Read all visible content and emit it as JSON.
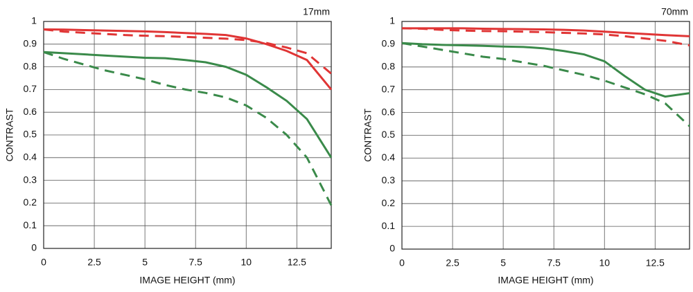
{
  "chart_data": [
    {
      "type": "line",
      "title": "17mm",
      "ylabel": "CONTRAST",
      "xlabel": "IMAGE HEIGHT (mm)",
      "x": [
        0,
        1,
        2,
        3,
        4,
        5,
        6,
        7,
        8,
        9,
        10,
        11,
        12,
        13,
        14.2
      ],
      "xlim": [
        0,
        14.2
      ],
      "xticks": [
        0,
        2.5,
        5,
        7.5,
        10,
        12.5
      ],
      "ylim": [
        0,
        1
      ],
      "yticks": [
        0,
        0.1,
        0.2,
        0.3,
        0.4,
        0.5,
        0.6,
        0.7,
        0.8,
        0.9,
        1
      ],
      "grid": true,
      "series": [
        {
          "color": "#e03535",
          "style": "solid",
          "values": [
            0.965,
            0.964,
            0.962,
            0.96,
            0.958,
            0.956,
            0.953,
            0.949,
            0.945,
            0.94,
            0.925,
            0.9,
            0.87,
            0.83,
            0.7
          ]
        },
        {
          "color": "#e03535",
          "style": "dashed",
          "values": [
            0.965,
            0.955,
            0.95,
            0.945,
            0.94,
            0.937,
            0.935,
            0.932,
            0.928,
            0.924,
            0.918,
            0.905,
            0.885,
            0.86,
            0.77
          ]
        },
        {
          "color": "#3a8a4a",
          "style": "solid",
          "values": [
            0.865,
            0.86,
            0.855,
            0.85,
            0.845,
            0.84,
            0.838,
            0.83,
            0.82,
            0.8,
            0.765,
            0.71,
            0.65,
            0.57,
            0.4
          ]
        },
        {
          "color": "#3a8a4a",
          "style": "dashed",
          "values": [
            0.865,
            0.835,
            0.81,
            0.785,
            0.765,
            0.745,
            0.72,
            0.7,
            0.685,
            0.665,
            0.63,
            0.575,
            0.5,
            0.4,
            0.19
          ]
        }
      ]
    },
    {
      "type": "line",
      "title": "70mm",
      "ylabel": "CONTRAST",
      "xlabel": "IMAGE HEIGHT (mm)",
      "x": [
        0,
        1,
        2,
        3,
        4,
        5,
        6,
        7,
        8,
        9,
        10,
        11,
        12,
        13,
        14.2
      ],
      "xlim": [
        0,
        14.2
      ],
      "xticks": [
        0,
        2.5,
        5,
        7.5,
        10,
        12.5
      ],
      "ylim": [
        0,
        1
      ],
      "yticks": [
        0,
        0.1,
        0.2,
        0.3,
        0.4,
        0.5,
        0.6,
        0.7,
        0.8,
        0.9,
        1
      ],
      "grid": true,
      "series": [
        {
          "color": "#e03535",
          "style": "solid",
          "values": [
            0.97,
            0.97,
            0.97,
            0.97,
            0.968,
            0.967,
            0.966,
            0.965,
            0.963,
            0.96,
            0.955,
            0.95,
            0.945,
            0.94,
            0.935
          ]
        },
        {
          "color": "#e03535",
          "style": "dashed",
          "values": [
            0.97,
            0.968,
            0.963,
            0.96,
            0.958,
            0.957,
            0.955,
            0.953,
            0.95,
            0.947,
            0.943,
            0.935,
            0.925,
            0.915,
            0.895
          ]
        },
        {
          "color": "#3a8a4a",
          "style": "solid",
          "values": [
            0.905,
            0.9,
            0.897,
            0.895,
            0.893,
            0.89,
            0.888,
            0.882,
            0.87,
            0.855,
            0.825,
            0.76,
            0.7,
            0.67,
            0.685
          ]
        },
        {
          "color": "#3a8a4a",
          "style": "dashed",
          "values": [
            0.905,
            0.89,
            0.875,
            0.86,
            0.845,
            0.835,
            0.82,
            0.805,
            0.785,
            0.765,
            0.74,
            0.71,
            0.68,
            0.64,
            0.54
          ]
        }
      ]
    }
  ]
}
